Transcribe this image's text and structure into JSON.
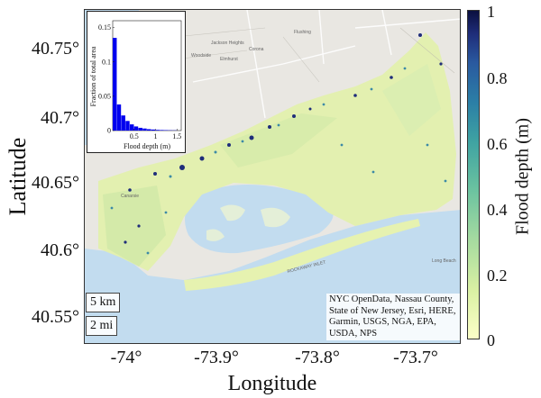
{
  "axes": {
    "xlabel": "Longitude",
    "ylabel": "Latitude",
    "xticks": [
      "-74°",
      "-73.9°",
      "-73.8°",
      "-73.7°"
    ],
    "yticks": [
      "40.75°",
      "40.7°",
      "40.65°",
      "40.6°",
      "40.55°"
    ],
    "xlim": [
      -74.05,
      -73.64
    ],
    "ylim": [
      40.535,
      40.775
    ],
    "xtick_values": [
      -74.0,
      -73.9,
      -73.8,
      -73.7
    ],
    "ytick_values": [
      40.75,
      40.7,
      40.65,
      40.6,
      40.55
    ]
  },
  "colorbar": {
    "label": "Flood depth (m)",
    "ticks": [
      "1",
      "0.8",
      "0.6",
      "0.4",
      "0.2",
      "0"
    ],
    "tick_values": [
      1,
      0.8,
      0.6,
      0.4,
      0.2,
      0
    ],
    "range": [
      0,
      1
    ],
    "colors": [
      "#fcffc8",
      "#a6dba0",
      "#3fa3a2",
      "#2a5aa0",
      "#0b1040"
    ]
  },
  "inset": {
    "xlabel": "Flood depth (m)",
    "ylabel": "Fraction of total area",
    "yticks": [
      "0",
      "0.05",
      "0.1",
      "0.15"
    ],
    "ytick_values": [
      0,
      0.05,
      0.1,
      0.15
    ],
    "xticks": [
      "0.5",
      "1",
      "1.5"
    ],
    "xtick_values": [
      0.5,
      1,
      1.5
    ],
    "xlim": [
      0,
      1.6
    ],
    "ylim": [
      0,
      0.16
    ],
    "bar_color": "#0000ee"
  },
  "chart_data": {
    "type": "bar",
    "bin_width": 0.1,
    "bins": [
      0.05,
      0.15,
      0.25,
      0.35,
      0.45,
      0.55,
      0.65,
      0.75,
      0.85,
      0.95,
      1.05,
      1.15,
      1.25,
      1.35,
      1.45
    ],
    "values": [
      0.135,
      0.038,
      0.022,
      0.014,
      0.009,
      0.006,
      0.004,
      0.003,
      0.002,
      0.0015,
      0.001,
      0.0008,
      0.0006,
      0.0004,
      0.0003
    ],
    "xlabel": "Flood depth (m)",
    "ylabel": "Fraction of total area",
    "ylim": [
      0,
      0.16
    ]
  },
  "scale_bars": [
    "5 km",
    "2 mi"
  ],
  "attribution": "NYC OpenData, Nassau County, State of New Jersey, Esri, HERE, Garmin, USGS, NGA, EPA, USDA, NPS",
  "map_labels": {
    "woodside": "Woodside",
    "jackson_heights": "Jackson Heights",
    "corona": "Corona",
    "elmhurst": "Elmhurst",
    "flushing": "Flushing",
    "long_beach": "Long Beach",
    "rockaway_inlet": "ROCKAWAY INLET",
    "canarsie": "Canarsie"
  }
}
